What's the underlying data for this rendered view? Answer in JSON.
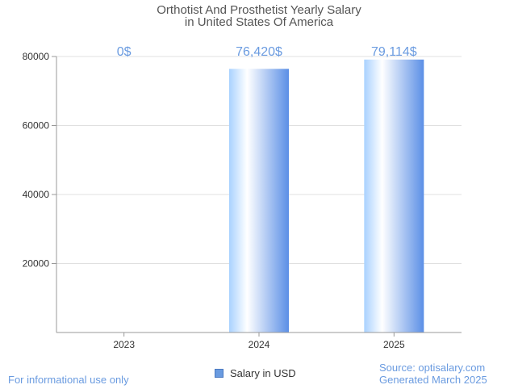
{
  "chart_data": {
    "type": "bar",
    "title_line1": "Orthotist And Prosthetist Yearly Salary",
    "title_line2": "in United States Of America",
    "categories": [
      "2023",
      "2024",
      "2025"
    ],
    "series": [
      {
        "name": "Salary in USD",
        "values": [
          0,
          76420,
          79114
        ]
      }
    ],
    "value_labels": [
      "0$",
      "76,420$",
      "79,114$"
    ],
    "y_ticks": [
      "20000",
      "40000",
      "60000",
      "80000"
    ],
    "y_tick_values": [
      20000,
      40000,
      60000,
      80000
    ],
    "ylim": [
      0,
      80000
    ],
    "grid": true,
    "legend_position": "bottom",
    "colors": {
      "bar_start": "#a9d2ff",
      "bar_mid": "#ffffff",
      "bar_end": "#5b8fe6",
      "value_label": "#6a9be0",
      "gridline": "#e0e0e0",
      "axis": "#999999"
    }
  },
  "footer": {
    "disclaimer": "For informational use only",
    "source": "Source: optisalary.com",
    "generated": "Generated March 2025"
  }
}
